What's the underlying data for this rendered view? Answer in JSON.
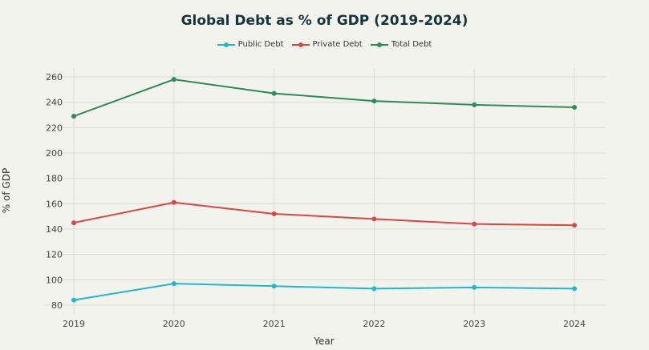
{
  "chart_data": {
    "type": "line",
    "title": "Global Debt as % of GDP (2019-2024)",
    "xlabel": "Year",
    "ylabel": "% of GDP",
    "x": [
      "2019",
      "2020",
      "2021",
      "2022",
      "2023",
      "2024"
    ],
    "ylim": [
      80,
      260
    ],
    "yticks": [
      80,
      100,
      120,
      140,
      160,
      180,
      200,
      220,
      240,
      260
    ],
    "grid": true,
    "legend_position": "top-center",
    "series": [
      {
        "name": "Public Debt",
        "color": "#1fb8cd",
        "values": [
          84,
          97,
          95,
          93,
          94,
          93
        ]
      },
      {
        "name": "Private Debt",
        "color": "#db4545",
        "values": [
          145,
          161,
          152,
          148,
          144,
          143
        ]
      },
      {
        "name": "Total Debt",
        "color": "#2e8b57",
        "values": [
          229,
          258,
          247,
          241,
          238,
          236
        ]
      }
    ]
  }
}
